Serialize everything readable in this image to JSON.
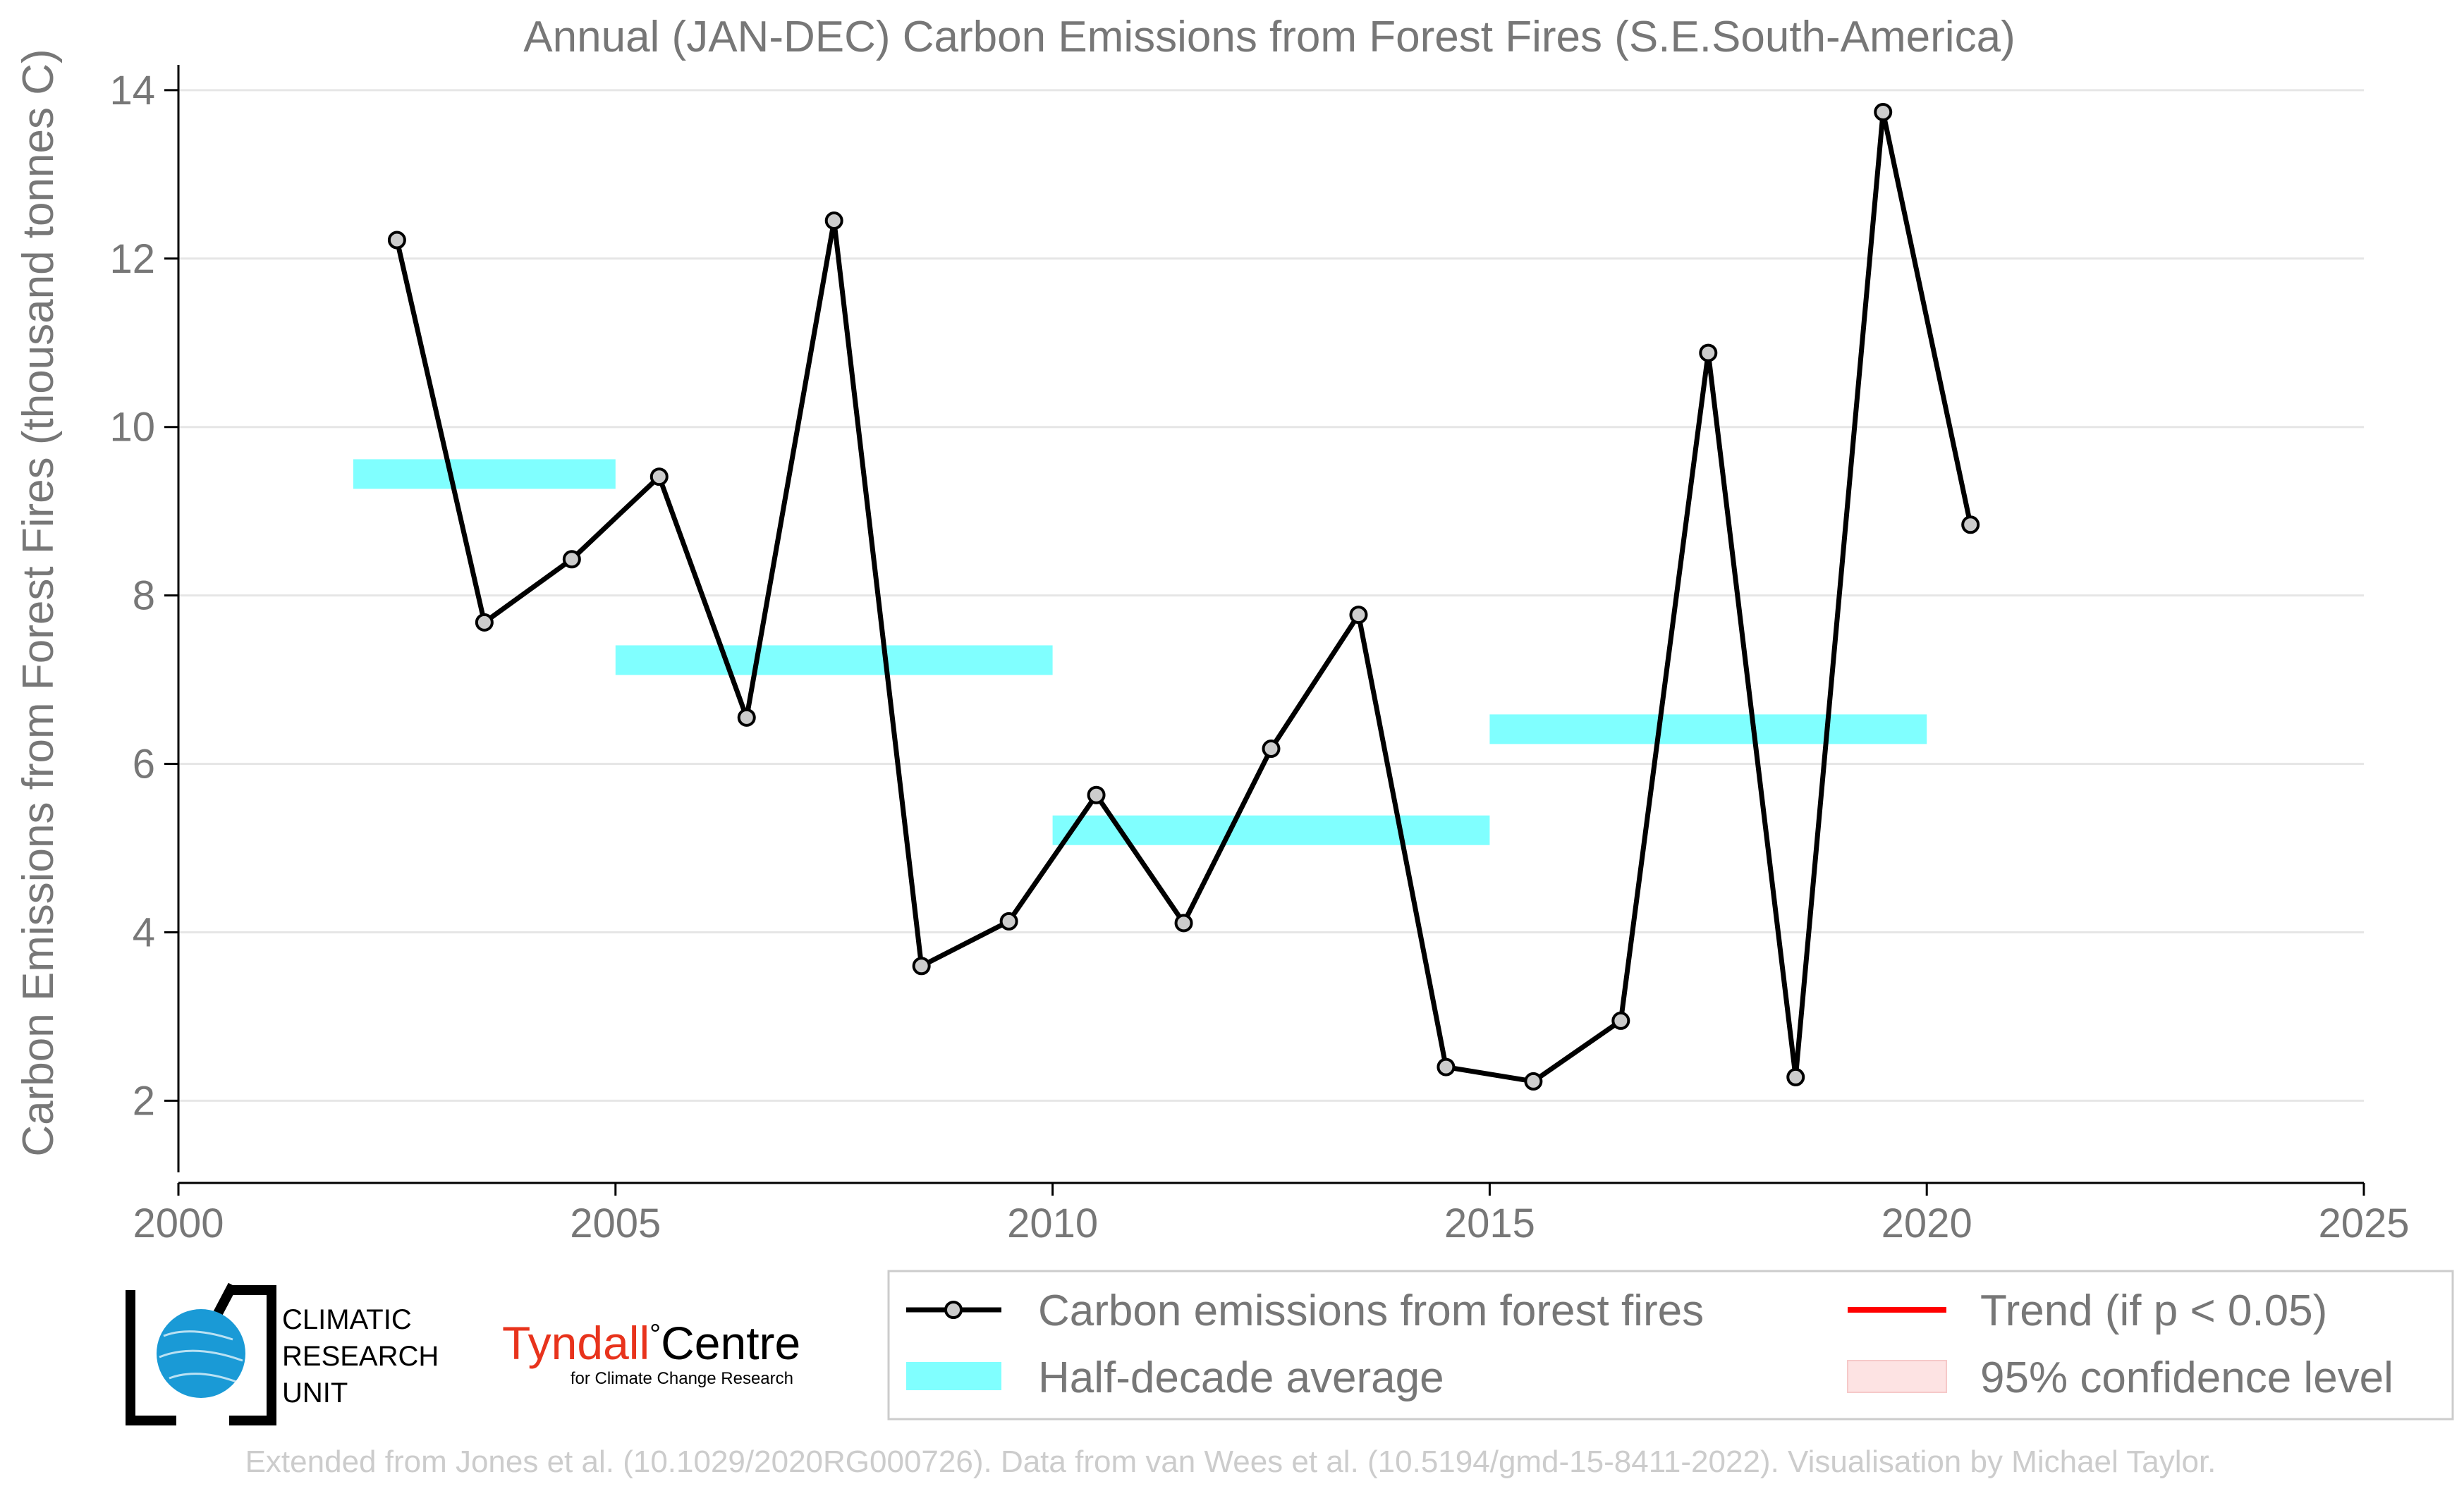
{
  "chart_data": {
    "type": "line",
    "title": "Annual (JAN-DEC) Carbon Emissions from Forest Fires (S.E.South-America)",
    "ylabel": "Carbon Emissions from Forest Fires (thousand tonnes C)",
    "xlabel": "",
    "xlim": [
      2000,
      2025
    ],
    "ylim": [
      1.3,
      14.2
    ],
    "xticks": [
      2000,
      2005,
      2010,
      2015,
      2020,
      2025
    ],
    "yticks": [
      2,
      4,
      6,
      8,
      10,
      12,
      14
    ],
    "grid": true,
    "series": [
      {
        "name": "Carbon emissions from forest fires",
        "color": "#000000",
        "marker_fill": "#cccccc",
        "x": [
          2002.5,
          2003.5,
          2004.5,
          2005.5,
          2006.5,
          2007.5,
          2008.5,
          2009.5,
          2010.5,
          2011.5,
          2012.5,
          2013.5,
          2014.5,
          2015.5,
          2016.5,
          2017.5,
          2018.5,
          2019.5,
          2020.5
        ],
        "y": [
          12.22,
          7.68,
          8.43,
          9.41,
          6.55,
          12.45,
          3.6,
          4.13,
          5.63,
          4.11,
          6.18,
          7.77,
          2.4,
          2.23,
          2.95,
          10.88,
          2.28,
          13.74,
          8.84
        ]
      }
    ],
    "half_decade_average": {
      "name": "Half-decade average",
      "color": "#80ffff",
      "segments": [
        {
          "x0": 2002,
          "x1": 2005,
          "y": 9.45
        },
        {
          "x0": 2005,
          "x1": 2010,
          "y": 7.24
        },
        {
          "x0": 2010,
          "x1": 2015,
          "y": 5.22
        },
        {
          "x0": 2015,
          "x1": 2020,
          "y": 6.42
        }
      ]
    },
    "legend": {
      "placement": "bottom-right",
      "entries": [
        {
          "label": "Carbon emissions from forest fires",
          "kind": "line-marker",
          "color": "#000000"
        },
        {
          "label": "Half-decade average",
          "kind": "patch",
          "color": "#80ffff"
        },
        {
          "label": "Trend (if p < 0.05)",
          "kind": "line",
          "color": "#ff0000"
        },
        {
          "label": "95% confidence level",
          "kind": "patch",
          "color": "#fde3e3"
        }
      ]
    },
    "logos": {
      "cru": [
        "CLIMATIC",
        "RESEARCH",
        "UNIT"
      ],
      "tyndall_main": "Tyndall",
      "tyndall_degree": "°",
      "tyndall_centre": "Centre",
      "tyndall_sub": "for Climate Change Research",
      "tyndall_color": "#e8331c",
      "globe_color": "#1a9ad6"
    },
    "footer": "Extended from Jones et al. (10.1029/2020RG000726). Data from van Wees et al. (10.5194/gmd-15-8411-2022). Visualisation by Michael Taylor."
  }
}
